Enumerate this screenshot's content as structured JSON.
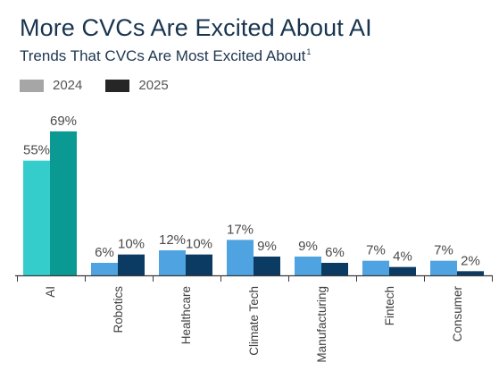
{
  "header": {
    "title": "More CVCs Are Excited About AI",
    "subtitle": "Trends That CVCs Are Most Excited About",
    "footnote_mark": "1"
  },
  "legend": [
    {
      "label": "2024",
      "color": "#a6a6a6"
    },
    {
      "label": "2025",
      "color": "#262626"
    }
  ],
  "chart_data": {
    "type": "bar",
    "title": "More CVCs Are Excited About AI",
    "subtitle": "Trends That CVCs Are Most Excited About",
    "categories": [
      "AI",
      "Robotics",
      "Healthcare",
      "Climate Tech",
      "Manufacturing",
      "Fintech",
      "Consumer"
    ],
    "series": [
      {
        "name": "2024",
        "values": [
          55,
          6,
          12,
          17,
          9,
          7,
          7
        ],
        "labels": [
          "55%",
          "6%",
          "12%",
          "17%",
          "9%",
          "7%",
          "7%"
        ]
      },
      {
        "name": "2025",
        "values": [
          69,
          10,
          10,
          9,
          6,
          4,
          2
        ],
        "labels": [
          "69%",
          "10%",
          "10%",
          "9%",
          "6%",
          "4%",
          "2%"
        ]
      }
    ],
    "bar_colors": {
      "AI": [
        "#34cdcc",
        "#0a9a93"
      ],
      "other": [
        "#4ea3e0",
        "#0b3a63"
      ]
    },
    "value_format": "percent",
    "ylim": [
      0,
      72
    ],
    "xlabel": "",
    "ylabel": "",
    "legend_position": "top-left",
    "grid": false
  }
}
